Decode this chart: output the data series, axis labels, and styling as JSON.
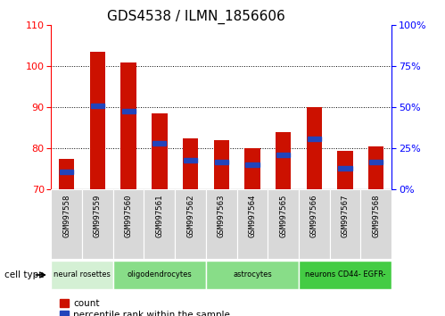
{
  "title": "GDS4538 / ILMN_1856606",
  "samples": [
    "GSM997558",
    "GSM997559",
    "GSM997560",
    "GSM997561",
    "GSM997562",
    "GSM997563",
    "GSM997564",
    "GSM997565",
    "GSM997566",
    "GSM997567",
    "GSM997568"
  ],
  "count_values": [
    77.5,
    103.5,
    101.0,
    88.5,
    82.5,
    82.0,
    80.0,
    84.0,
    90.0,
    79.5,
    80.5
  ],
  "percentile_values": [
    11.0,
    51.0,
    48.0,
    28.0,
    18.0,
    17.0,
    15.0,
    21.0,
    31.0,
    13.0,
    17.0
  ],
  "ylim_left": [
    70,
    110
  ],
  "ylim_right": [
    0,
    100
  ],
  "yticks_left": [
    70,
    80,
    90,
    100,
    110
  ],
  "yticks_right": [
    0,
    25,
    50,
    75,
    100
  ],
  "ytick_labels_right": [
    "0%",
    "25%",
    "50%",
    "75%",
    "100%"
  ],
  "bar_color": "#cc1100",
  "percentile_color": "#2244bb",
  "bar_width": 0.5,
  "cell_type_groups": [
    {
      "label": "neural rosettes",
      "start": 0,
      "end": 2,
      "color": "#d4f0d4"
    },
    {
      "label": "oligodendrocytes",
      "start": 2,
      "end": 5,
      "color": "#88dd88"
    },
    {
      "label": "astrocytes",
      "start": 5,
      "end": 8,
      "color": "#88dd88"
    },
    {
      "label": "neurons CD44- EGFR-",
      "start": 8,
      "end": 11,
      "color": "#44cc44"
    }
  ],
  "title_fontsize": 11
}
